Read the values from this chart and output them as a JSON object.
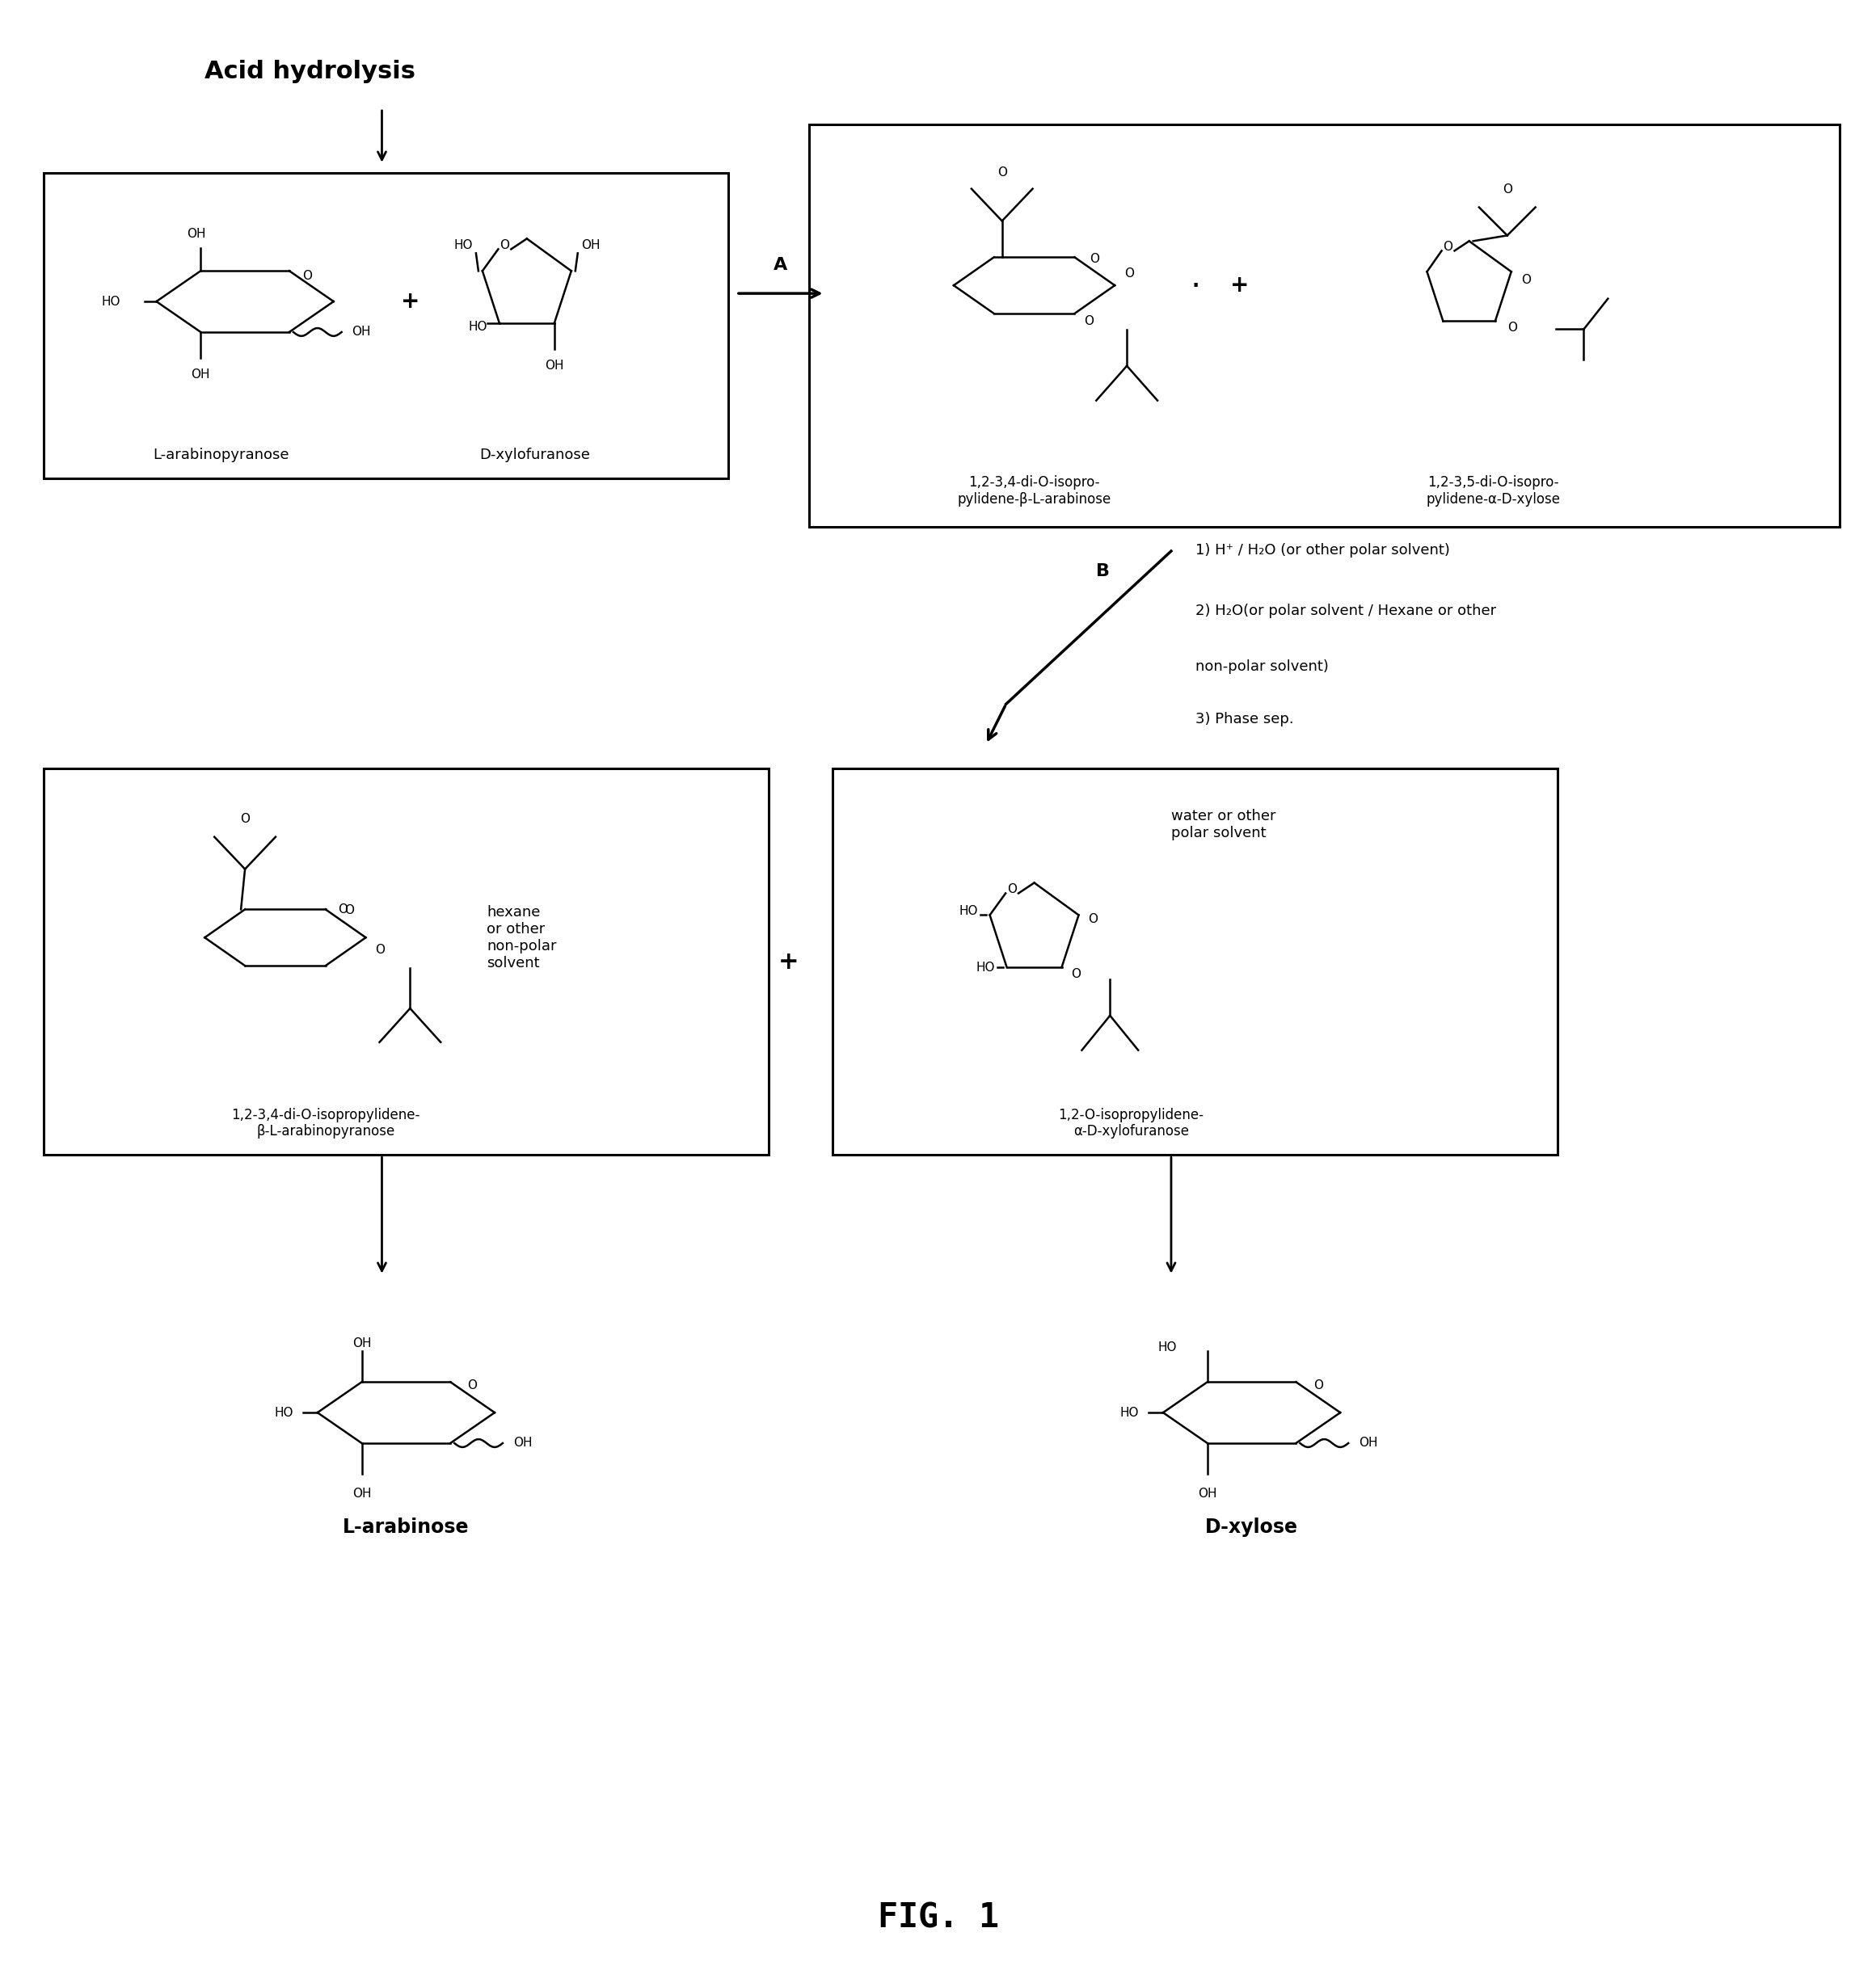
{
  "title": "Acid hydrolysis",
  "fig_label": "FIG. 1",
  "background_color": "#ffffff",
  "text_color": "#000000",
  "step_A_label": "A",
  "step_B_label": "B",
  "step_B_text_1": "1) H⁺ / H₂O (or other polar solvent)",
  "step_B_text_2": "2) H₂O(or polar solvent / Hexane or other",
  "step_B_text_3": "non-polar solvent)",
  "step_B_text_4": "3) Phase sep.",
  "box1_label1": "L-arabinopyranose",
  "box1_label2": "D-xylofuranose",
  "box2_label1": "1,2-3,4-di-O-isopro-\npylidene-β-L-arabinose",
  "box2_label2": "1,2-3,5-di-O-isopro-\npylidene-α-D-xylose",
  "box3_label1": "1,2-3,4-di-O-isopropylidene-\nβ-L-arabinopyranose",
  "box3_label2": "1,2-O-isopropylidene-\nα-D-xylofuranose",
  "box3_note1": "hexane\nor other\nnon-polar\nsolvent",
  "box3_note2": "water or other\npolar solvent",
  "final_label1": "L-arabinose",
  "final_label2": "D-xylose"
}
